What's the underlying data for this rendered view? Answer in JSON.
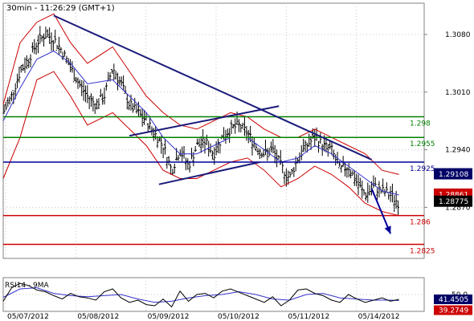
{
  "header": {
    "title": "30min - 11:26:29 (GMT+1)",
    "rsi_title": "RSI14 - 9MA"
  },
  "colors": {
    "resistance": "#008000",
    "support": "#cc0000",
    "pivot": "#000099",
    "trend": "#1a1a7a",
    "price_bar": "#000000",
    "bollinger": "#cc0000",
    "moving_average": "#3333cc",
    "rsi": "#000000",
    "rsi_ma": "#3333cc",
    "price_tag_blue": "#000066",
    "price_tag_red": "#cc0000",
    "price_tag_dark": "#000000"
  },
  "chart_data": {
    "type": "line",
    "title": "30min - 11:26:29 (GMT+1)",
    "x_labels": [
      "05/07/2012",
      "05/08/2012",
      "05/09/2012",
      "05/10/2012",
      "05/11/2012",
      "05/14/2012"
    ],
    "y_ticks": [
      "1.3080",
      "1.3010",
      "1.2940",
      "1.2870"
    ],
    "y_tick_values": [
      1.308,
      1.301,
      1.294,
      1.287
    ],
    "ylim": [
      1.2808,
      1.3118
    ],
    "grid": true,
    "horizontal_levels": [
      {
        "value": 1.298,
        "label": "1.298",
        "kind": "resistance"
      },
      {
        "value": 1.2955,
        "label": "1.2955",
        "kind": "resistance"
      },
      {
        "value": 1.2925,
        "label": "1.2925",
        "kind": "pivot"
      },
      {
        "value": 1.286,
        "label": "1.286",
        "kind": "support"
      },
      {
        "value": 1.2825,
        "label": "1.2825",
        "kind": "support"
      }
    ],
    "price_tags": [
      {
        "value": 1.29108,
        "label": "1.29108",
        "style": "blue"
      },
      {
        "value": 1.28861,
        "label": "1.28861",
        "style": "red"
      },
      {
        "value": 1.28775,
        "label": "1.28775",
        "style": "dark"
      }
    ],
    "trendlines": [
      {
        "from": [
          0.12,
          1.3103
        ],
        "to": [
          0.875,
          1.2928
        ]
      },
      {
        "from": [
          0.3,
          1.2957
        ],
        "to": [
          0.655,
          1.2993
        ]
      },
      {
        "from": [
          0.37,
          1.2898
        ],
        "to": [
          0.61,
          1.2925
        ]
      }
    ],
    "forecast_arrow": {
      "from": [
        0.875,
        1.2893
      ],
      "to": [
        0.92,
        1.2838
      ]
    },
    "price_close_path": [
      [
        0.0,
        1.2985
      ],
      [
        0.02,
        1.3005
      ],
      [
        0.04,
        1.3035
      ],
      [
        0.06,
        1.305
      ],
      [
        0.08,
        1.307
      ],
      [
        0.1,
        1.308
      ],
      [
        0.12,
        1.3075
      ],
      [
        0.14,
        1.306
      ],
      [
        0.16,
        1.304
      ],
      [
        0.18,
        1.302
      ],
      [
        0.2,
        1.3005
      ],
      [
        0.22,
        1.2995
      ],
      [
        0.24,
        1.3005
      ],
      [
        0.26,
        1.304
      ],
      [
        0.28,
        1.302
      ],
      [
        0.3,
        1.2995
      ],
      [
        0.32,
        1.2985
      ],
      [
        0.34,
        1.2975
      ],
      [
        0.36,
        1.296
      ],
      [
        0.38,
        1.2945
      ],
      [
        0.4,
        1.2915
      ],
      [
        0.42,
        1.294
      ],
      [
        0.44,
        1.292
      ],
      [
        0.46,
        1.2945
      ],
      [
        0.48,
        1.295
      ],
      [
        0.5,
        1.2935
      ],
      [
        0.52,
        1.2955
      ],
      [
        0.54,
        1.2965
      ],
      [
        0.56,
        1.297
      ],
      [
        0.58,
        1.296
      ],
      [
        0.6,
        1.2945
      ],
      [
        0.62,
        1.2935
      ],
      [
        0.64,
        1.294
      ],
      [
        0.66,
        1.292
      ],
      [
        0.68,
        1.2905
      ],
      [
        0.7,
        1.293
      ],
      [
        0.72,
        1.2945
      ],
      [
        0.74,
        1.2955
      ],
      [
        0.76,
        1.2945
      ],
      [
        0.78,
        1.294
      ],
      [
        0.8,
        1.2915
      ],
      [
        0.82,
        1.292
      ],
      [
        0.84,
        1.29
      ],
      [
        0.86,
        1.2885
      ],
      [
        0.88,
        1.2895
      ],
      [
        0.9,
        1.289
      ],
      [
        0.92,
        1.2885
      ],
      [
        0.94,
        1.2875
      ]
    ],
    "bollinger_upper": [
      [
        0.0,
        1.2995
      ],
      [
        0.04,
        1.307
      ],
      [
        0.08,
        1.3095
      ],
      [
        0.12,
        1.3105
      ],
      [
        0.16,
        1.307
      ],
      [
        0.2,
        1.3045
      ],
      [
        0.26,
        1.3065
      ],
      [
        0.3,
        1.3035
      ],
      [
        0.34,
        1.3005
      ],
      [
        0.38,
        1.2985
      ],
      [
        0.42,
        1.297
      ],
      [
        0.46,
        1.2965
      ],
      [
        0.5,
        1.2975
      ],
      [
        0.54,
        1.2985
      ],
      [
        0.58,
        1.298
      ],
      [
        0.62,
        1.2965
      ],
      [
        0.66,
        1.2955
      ],
      [
        0.7,
        1.2955
      ],
      [
        0.74,
        1.2965
      ],
      [
        0.78,
        1.2955
      ],
      [
        0.82,
        1.2945
      ],
      [
        0.86,
        1.2935
      ],
      [
        0.9,
        1.2915
      ],
      [
        0.94,
        1.291
      ]
    ],
    "bollinger_lower": [
      [
        0.0,
        1.2905
      ],
      [
        0.04,
        1.2955
      ],
      [
        0.08,
        1.3025
      ],
      [
        0.12,
        1.3035
      ],
      [
        0.16,
        1.3005
      ],
      [
        0.2,
        1.297
      ],
      [
        0.26,
        1.2985
      ],
      [
        0.3,
        1.2965
      ],
      [
        0.34,
        1.2945
      ],
      [
        0.38,
        1.2915
      ],
      [
        0.42,
        1.2905
      ],
      [
        0.46,
        1.2905
      ],
      [
        0.5,
        1.2915
      ],
      [
        0.54,
        1.2925
      ],
      [
        0.58,
        1.293
      ],
      [
        0.62,
        1.2915
      ],
      [
        0.66,
        1.2895
      ],
      [
        0.7,
        1.2905
      ],
      [
        0.74,
        1.292
      ],
      [
        0.78,
        1.291
      ],
      [
        0.82,
        1.2895
      ],
      [
        0.86,
        1.2875
      ],
      [
        0.9,
        1.2865
      ],
      [
        0.94,
        1.286
      ]
    ],
    "moving_average": [
      [
        0.0,
        1.2975
      ],
      [
        0.04,
        1.3015
      ],
      [
        0.08,
        1.305
      ],
      [
        0.12,
        1.306
      ],
      [
        0.16,
        1.3045
      ],
      [
        0.2,
        1.302
      ],
      [
        0.26,
        1.3025
      ],
      [
        0.3,
        1.3005
      ],
      [
        0.34,
        1.2985
      ],
      [
        0.38,
        1.2955
      ],
      [
        0.42,
        1.2935
      ],
      [
        0.46,
        1.2935
      ],
      [
        0.5,
        1.2945
      ],
      [
        0.54,
        1.2955
      ],
      [
        0.58,
        1.2955
      ],
      [
        0.62,
        1.294
      ],
      [
        0.66,
        1.2925
      ],
      [
        0.7,
        1.293
      ],
      [
        0.74,
        1.2945
      ],
      [
        0.78,
        1.2935
      ],
      [
        0.82,
        1.292
      ],
      [
        0.86,
        1.2905
      ],
      [
        0.9,
        1.289
      ],
      [
        0.94,
        1.2885
      ]
    ],
    "rsi": {
      "title": "RSI14 - 9MA",
      "ticks": [
        "50.0"
      ],
      "tick_values": [
        50
      ],
      "ylim": [
        20,
        80
      ],
      "value_label": "41.4505",
      "ma_label": "39.2749",
      "values": [
        [
          0.0,
          38
        ],
        [
          0.02,
          62
        ],
        [
          0.04,
          70
        ],
        [
          0.06,
          66
        ],
        [
          0.08,
          58
        ],
        [
          0.1,
          55
        ],
        [
          0.12,
          48
        ],
        [
          0.14,
          42
        ],
        [
          0.16,
          52
        ],
        [
          0.18,
          46
        ],
        [
          0.2,
          44
        ],
        [
          0.22,
          40
        ],
        [
          0.24,
          55
        ],
        [
          0.26,
          60
        ],
        [
          0.28,
          44
        ],
        [
          0.3,
          36
        ],
        [
          0.32,
          40
        ],
        [
          0.34,
          32
        ],
        [
          0.36,
          30
        ],
        [
          0.38,
          42
        ],
        [
          0.4,
          28
        ],
        [
          0.42,
          56
        ],
        [
          0.44,
          38
        ],
        [
          0.46,
          50
        ],
        [
          0.48,
          52
        ],
        [
          0.5,
          44
        ],
        [
          0.52,
          56
        ],
        [
          0.54,
          60
        ],
        [
          0.56,
          54
        ],
        [
          0.58,
          48
        ],
        [
          0.6,
          42
        ],
        [
          0.62,
          36
        ],
        [
          0.64,
          46
        ],
        [
          0.66,
          30
        ],
        [
          0.68,
          40
        ],
        [
          0.7,
          58
        ],
        [
          0.72,
          60
        ],
        [
          0.74,
          52
        ],
        [
          0.76,
          48
        ],
        [
          0.78,
          40
        ],
        [
          0.8,
          36
        ],
        [
          0.82,
          50
        ],
        [
          0.84,
          42
        ],
        [
          0.86,
          36
        ],
        [
          0.88,
          40
        ],
        [
          0.9,
          44
        ],
        [
          0.92,
          38
        ],
        [
          0.94,
          41.45
        ]
      ],
      "ma": [
        [
          0.0,
          45
        ],
        [
          0.04,
          60
        ],
        [
          0.08,
          62
        ],
        [
          0.12,
          52
        ],
        [
          0.16,
          48
        ],
        [
          0.2,
          46
        ],
        [
          0.24,
          48
        ],
        [
          0.28,
          50
        ],
        [
          0.32,
          42
        ],
        [
          0.36,
          36
        ],
        [
          0.4,
          38
        ],
        [
          0.44,
          44
        ],
        [
          0.48,
          48
        ],
        [
          0.52,
          50
        ],
        [
          0.56,
          55
        ],
        [
          0.6,
          50
        ],
        [
          0.64,
          42
        ],
        [
          0.68,
          40
        ],
        [
          0.72,
          50
        ],
        [
          0.76,
          52
        ],
        [
          0.8,
          44
        ],
        [
          0.84,
          42
        ],
        [
          0.88,
          40
        ],
        [
          0.92,
          40
        ],
        [
          0.94,
          39.27
        ]
      ]
    }
  }
}
